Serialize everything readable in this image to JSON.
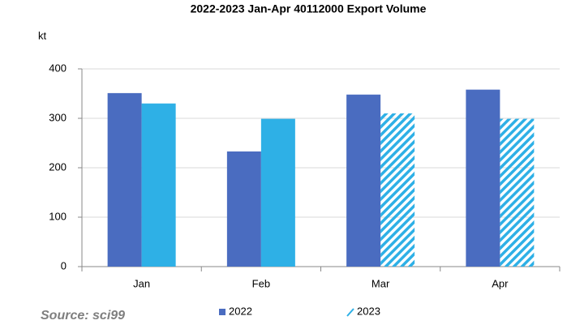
{
  "chart_data": {
    "type": "bar",
    "title": "2022-2023  Jan-Apr 40112000  Export Volume",
    "y_label": "kt",
    "source": "Source: sci99",
    "categories": [
      "Jan",
      "Feb",
      "Mar",
      "Apr"
    ],
    "series": [
      {
        "name": "2022",
        "color": "#4a6cc0",
        "values": [
          351,
          233,
          348,
          358
        ]
      },
      {
        "name": "2023",
        "color": "#2eb0e6",
        "values": [
          330,
          299,
          310,
          299
        ],
        "hatched": [
          false,
          false,
          true,
          true
        ]
      }
    ],
    "ylim": [
      0,
      400
    ],
    "yticks": [
      0,
      100,
      200,
      300,
      400
    ],
    "grid": true
  }
}
